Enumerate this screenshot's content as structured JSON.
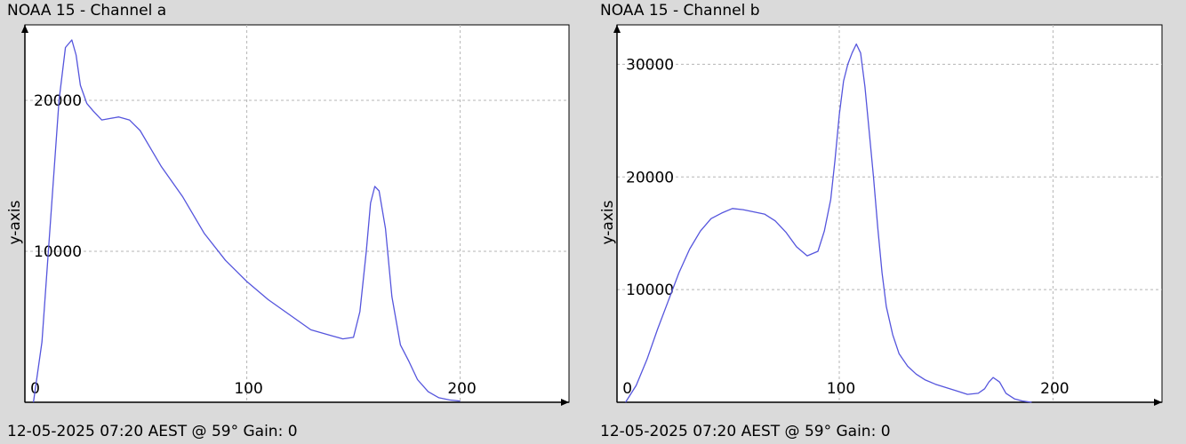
{
  "charts": [
    {
      "title": "NOAA 15 - Channel a",
      "footer": "12-05-2025 07:20 AEST @ 59° Gain: 0",
      "chart_data": {
        "type": "line",
        "ylabel": "y-axis",
        "xlabel": "",
        "xlim": [
          -4,
          251
        ],
        "ylim": [
          0,
          25000
        ],
        "xticks": [
          0,
          100,
          200
        ],
        "yticks": [
          10000,
          20000
        ],
        "grid": true,
        "line_color": "#5555dd",
        "x": [
          0,
          4,
          8,
          12,
          15,
          18,
          20,
          22,
          25,
          28,
          32,
          36,
          40,
          45,
          50,
          55,
          60,
          70,
          80,
          90,
          95,
          100,
          110,
          120,
          130,
          140,
          145,
          150,
          153,
          156,
          158,
          160,
          162,
          165,
          168,
          172,
          176,
          180,
          185,
          190,
          195,
          200
        ],
        "y": [
          0,
          4000,
          12000,
          20000,
          23500,
          24000,
          23000,
          21000,
          19800,
          19300,
          18700,
          18800,
          18900,
          18700,
          18000,
          16800,
          15600,
          13600,
          11200,
          9400,
          8700,
          8000,
          6800,
          5800,
          4800,
          4400,
          4200,
          4300,
          6000,
          10000,
          13200,
          14300,
          14000,
          11500,
          7000,
          3800,
          2700,
          1500,
          700,
          300,
          150,
          80
        ]
      }
    },
    {
      "title": "NOAA 15 - Channel b",
      "footer": "12-05-2025 07:20 AEST @ 59° Gain: 0",
      "chart_data": {
        "type": "line",
        "ylabel": "y-axis",
        "xlabel": "",
        "xlim": [
          -4,
          251
        ],
        "ylim": [
          0,
          33500
        ],
        "xticks": [
          0,
          100,
          200
        ],
        "yticks": [
          10000,
          20000,
          30000
        ],
        "grid": true,
        "line_color": "#5555dd",
        "x": [
          0,
          5,
          10,
          15,
          20,
          25,
          30,
          35,
          40,
          45,
          50,
          55,
          60,
          65,
          70,
          75,
          80,
          85,
          90,
          93,
          96,
          98,
          100,
          102,
          104,
          106,
          108,
          110,
          112,
          114,
          116,
          118,
          120,
          122,
          125,
          128,
          132,
          136,
          140,
          145,
          150,
          155,
          160,
          165,
          168,
          170,
          172,
          175,
          178,
          182,
          186,
          190
        ],
        "y": [
          0,
          1500,
          3800,
          6500,
          9000,
          11500,
          13600,
          15200,
          16300,
          16800,
          17200,
          17100,
          16900,
          16700,
          16100,
          15100,
          13800,
          13000,
          13400,
          15200,
          18000,
          21500,
          25500,
          28500,
          30000,
          31000,
          31800,
          31000,
          28000,
          24000,
          20000,
          15500,
          11500,
          8500,
          6000,
          4300,
          3200,
          2500,
          2000,
          1600,
          1300,
          1000,
          700,
          800,
          1200,
          1800,
          2200,
          1800,
          800,
          300,
          100,
          0
        ]
      }
    }
  ]
}
